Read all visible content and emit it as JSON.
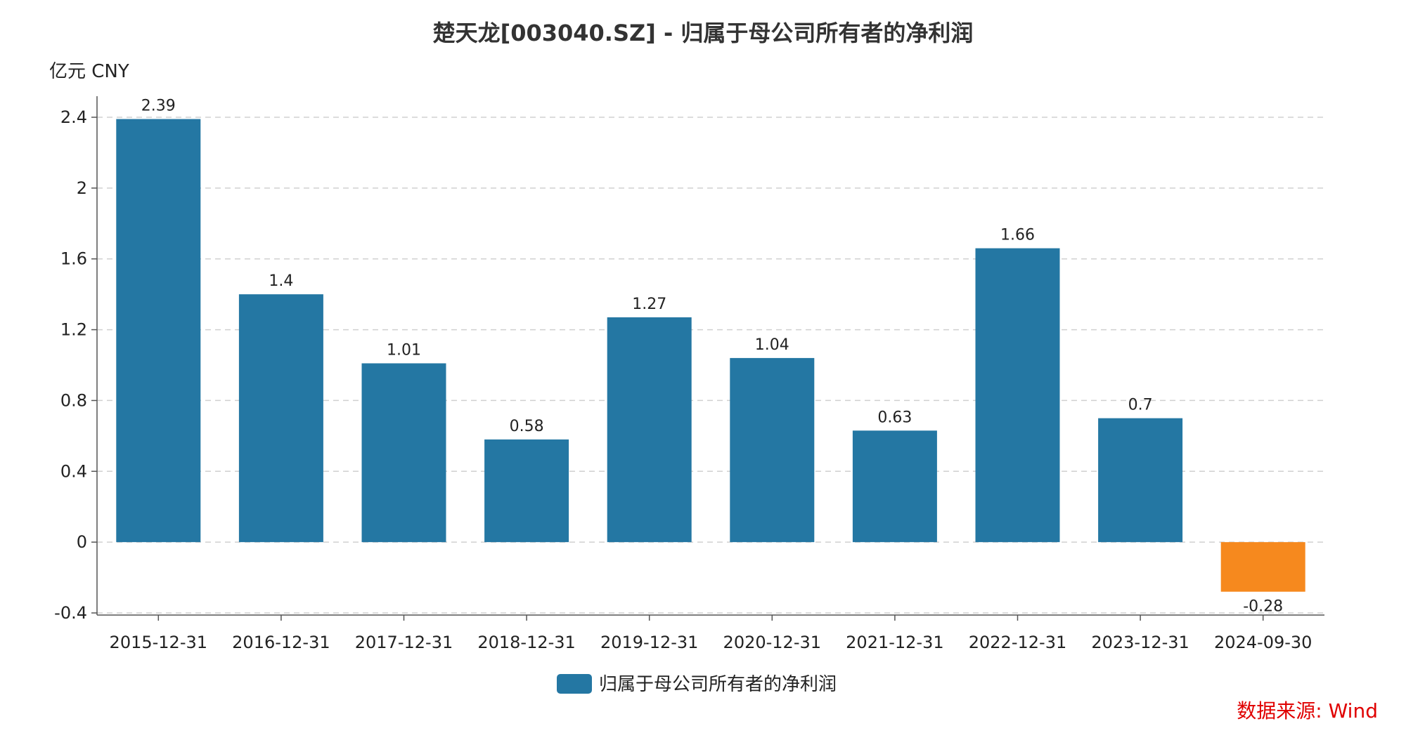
{
  "chart_data": {
    "type": "bar",
    "title": "楚天龙[003040.SZ] - 归属于母公司所有者的净利润",
    "unit_label": "亿元  CNY",
    "categories": [
      "2015-12-31",
      "2016-12-31",
      "2017-12-31",
      "2018-12-31",
      "2019-12-31",
      "2020-12-31",
      "2021-12-31",
      "2022-12-31",
      "2023-12-31",
      "2024-09-30"
    ],
    "series": [
      {
        "name": "归属于母公司所有者的净利润",
        "values": [
          2.39,
          1.4,
          1.01,
          0.58,
          1.27,
          1.04,
          0.63,
          1.66,
          0.7,
          -0.28
        ],
        "value_labels": [
          "2.39",
          "1.4",
          "1.01",
          "0.58",
          "1.27",
          "1.04",
          "0.63",
          "1.66",
          "0.7",
          "-0.28"
        ]
      }
    ],
    "ylim": [
      -0.4,
      2.4
    ],
    "yticks": [
      -0.4,
      0,
      0.4,
      0.8,
      1.2,
      1.6,
      2,
      2.4
    ],
    "ytick_labels": [
      "-0.4",
      "0",
      "0.4",
      "0.8",
      "1.2",
      "1.6",
      "2",
      "2.4"
    ],
    "grid": true,
    "legend_position": "bottom",
    "colors": {
      "positive": "#2477a3",
      "negative": "#f6891e",
      "grid": "#d0d0d0",
      "axis": "#555555"
    },
    "source": "数据来源: Wind"
  }
}
